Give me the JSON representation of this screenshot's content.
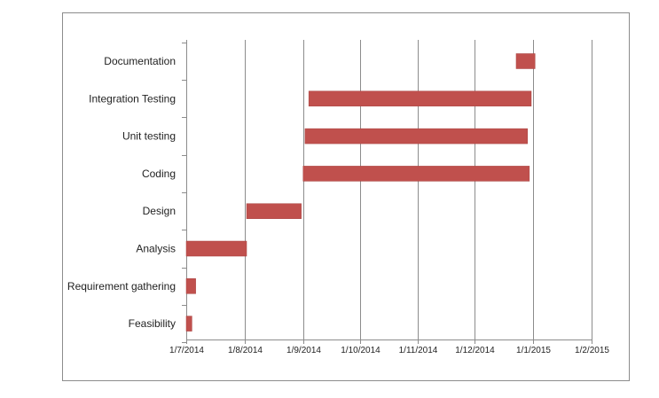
{
  "chart_data": {
    "type": "bar",
    "orientation": "horizontal",
    "stacked_gantt": true,
    "title": "",
    "xlabel": "",
    "ylabel": "",
    "categories": [
      "Documentation",
      "Integration Testing",
      "Unit testing",
      "Coding",
      "Design",
      "Analysis",
      "Requirement gathering",
      "Feasibility"
    ],
    "series": [
      {
        "values": [
          {
            "start": "2014-12-23",
            "end": "2015-01-02"
          },
          {
            "start": "2014-09-04",
            "end": "2014-12-31"
          },
          {
            "start": "2014-09-02",
            "end": "2014-12-29"
          },
          {
            "start": "2014-09-01",
            "end": "2014-12-30"
          },
          {
            "start": "2014-08-02",
            "end": "2014-08-31"
          },
          {
            "start": "2014-07-01",
            "end": "2014-08-02"
          },
          {
            "start": "2014-07-01",
            "end": "2014-07-06"
          },
          {
            "start": "2014-07-01",
            "end": "2014-07-04"
          }
        ]
      }
    ],
    "x_ticks": [
      {
        "date": "2014-07-01",
        "label": "1/7/2014"
      },
      {
        "date": "2014-08-01",
        "label": "1/8/2014"
      },
      {
        "date": "2014-09-01",
        "label": "1/9/2014"
      },
      {
        "date": "2014-10-01",
        "label": "1/10/2014"
      },
      {
        "date": "2014-11-01",
        "label": "1/11/2014"
      },
      {
        "date": "2014-12-01",
        "label": "1/12/2014"
      },
      {
        "date": "2015-01-01",
        "label": "1/1/2015"
      },
      {
        "date": "2015-02-01",
        "label": "1/2/2015"
      }
    ],
    "xlim": [
      "2014-07-01",
      "2015-02-01"
    ],
    "grid": "vertical",
    "legend": "none",
    "colors": {
      "bar": "#c0504d",
      "bar_border": "#a94442",
      "grid": "#8c8c8c",
      "axis": "#8c8c8c"
    }
  }
}
